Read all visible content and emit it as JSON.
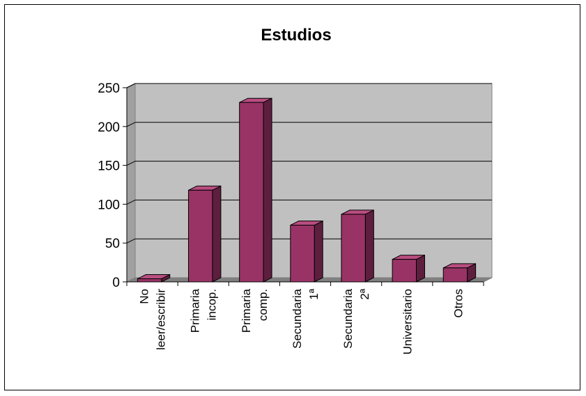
{
  "chart_data": {
    "type": "bar",
    "title": "Estudios",
    "categories": [
      [
        "No",
        "leer/escribir"
      ],
      [
        "Primaria",
        "incop."
      ],
      [
        "Primaria",
        "comp."
      ],
      [
        "Secundaria",
        "1ª"
      ],
      [
        "Secundaria",
        "2ª"
      ],
      [
        "Universitario"
      ],
      [
        "Otros"
      ]
    ],
    "values": [
      4,
      118,
      231,
      73,
      87,
      29,
      18
    ],
    "ylim": [
      0,
      250
    ],
    "yticks": [
      "0",
      "50",
      "100",
      "150",
      "200",
      "250"
    ],
    "grid": true,
    "legend": "none",
    "colors": {
      "bar_front": "#993366",
      "bar_top": "#b84d80",
      "bar_side": "#5e1f3f",
      "plot_background": "#c0c0c0",
      "gridline": "#000000"
    }
  }
}
